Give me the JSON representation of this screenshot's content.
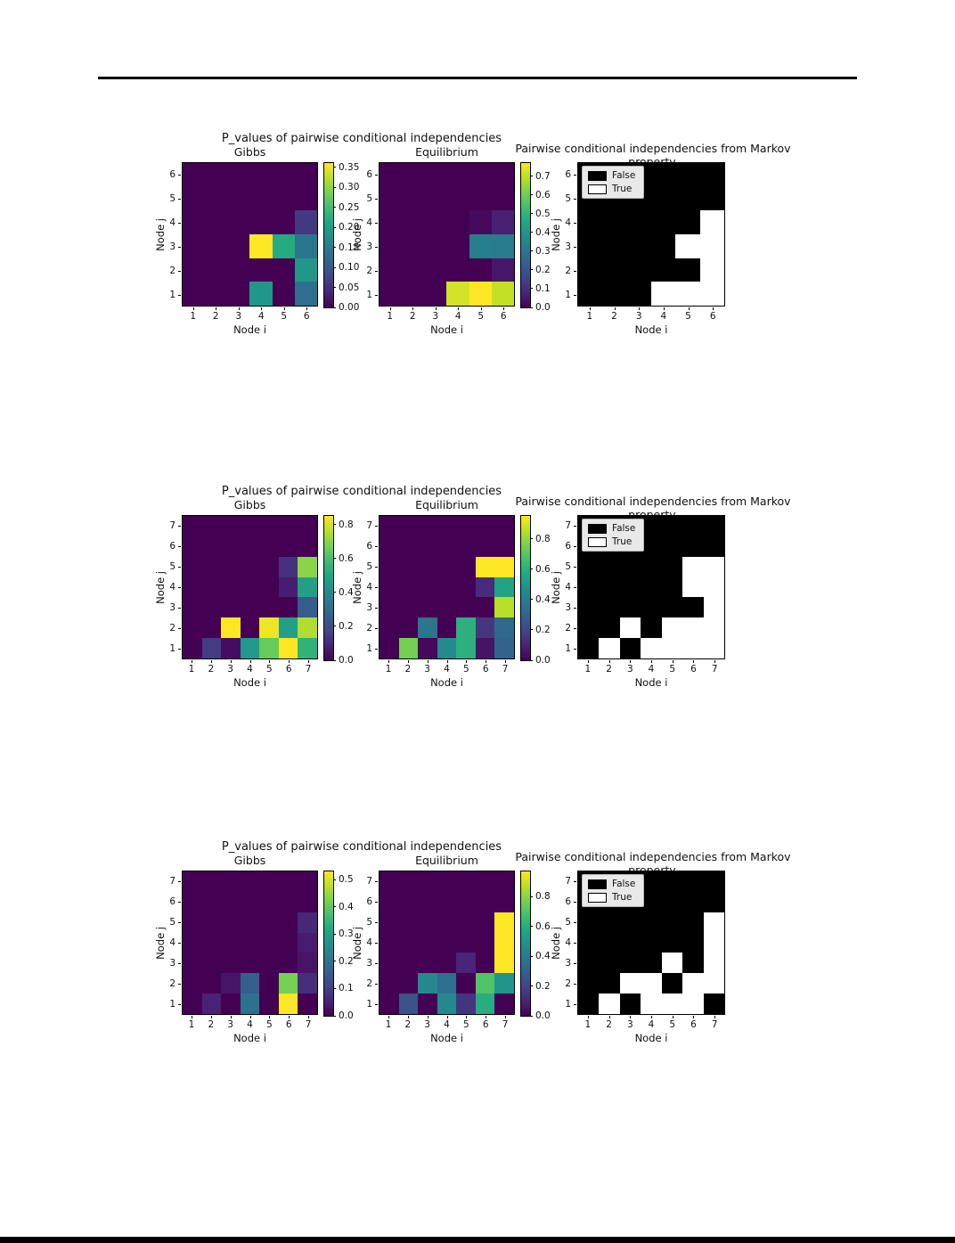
{
  "page": {
    "top_rule_color": "#000000",
    "bottom_bar_color": "#000000"
  },
  "chart_data": [
    {
      "type": "heatmap",
      "suptitle": "P_values of pairwise conditional independencies",
      "markov_title": "Pairwise conditional independencies from Markov property.",
      "xlabel": "Node i",
      "ylabel": "Node j",
      "x_ticks": [
        "1",
        "2",
        "3",
        "4",
        "5",
        "6"
      ],
      "y_ticks": [
        "1",
        "2",
        "3",
        "4",
        "5",
        "6"
      ],
      "gibbs": {
        "title": "Gibbs",
        "vmax": 0.36,
        "colorbar": {
          "vmax": 0.36,
          "ticks": [
            "0.00",
            "0.05",
            "0.10",
            "0.15",
            "0.20",
            "0.25",
            "0.30",
            "0.35"
          ]
        },
        "matrix": [
          [
            0,
            0,
            0,
            0,
            0,
            0
          ],
          [
            0,
            0,
            0,
            0,
            0,
            0
          ],
          [
            0,
            0,
            0,
            0,
            0,
            0.06
          ],
          [
            0,
            0,
            0,
            0.36,
            0.22,
            0.14
          ],
          [
            0,
            0,
            0,
            0,
            0,
            0.19
          ],
          [
            0,
            0,
            0,
            0.19,
            0,
            0.13
          ]
        ]
      },
      "equilibrium": {
        "title": "Equilibrium",
        "vmax": 0.77,
        "colorbar": {
          "vmax": 0.77,
          "ticks": [
            "0.0",
            "0.1",
            "0.2",
            "0.3",
            "0.4",
            "0.5",
            "0.6",
            "0.7"
          ]
        },
        "matrix": [
          [
            0,
            0,
            0,
            0,
            0,
            0
          ],
          [
            0,
            0,
            0,
            0,
            0,
            0
          ],
          [
            0,
            0,
            0,
            0,
            0.02,
            0.07
          ],
          [
            0,
            0,
            0,
            0,
            0.33,
            0.32
          ],
          [
            0,
            0,
            0,
            0,
            0,
            0.05
          ],
          [
            0,
            0,
            0,
            0.72,
            0.77,
            0.7
          ]
        ]
      },
      "markov": {
        "binary": true,
        "legend": [
          {
            "label": "False",
            "color": "#000000"
          },
          {
            "label": "True",
            "color": "#ffffff"
          }
        ],
        "matrix": [
          [
            0,
            0,
            0,
            0,
            0,
            0
          ],
          [
            0,
            0,
            0,
            0,
            0,
            0
          ],
          [
            0,
            0,
            0,
            0,
            0,
            1
          ],
          [
            0,
            0,
            0,
            0,
            1,
            1
          ],
          [
            0,
            0,
            0,
            0,
            0,
            1
          ],
          [
            0,
            0,
            0,
            1,
            1,
            1
          ]
        ]
      }
    },
    {
      "type": "heatmap",
      "suptitle": "P_values of pairwise conditional independencies",
      "markov_title": "Pairwise conditional independencies from Markov property.",
      "xlabel": "Node i",
      "ylabel": "Node j",
      "x_ticks": [
        "1",
        "2",
        "3",
        "4",
        "5",
        "6",
        "7"
      ],
      "y_ticks": [
        "1",
        "2",
        "3",
        "4",
        "5",
        "6",
        "7"
      ],
      "gibbs": {
        "title": "Gibbs",
        "vmax": 0.85,
        "colorbar": {
          "vmax": 0.85,
          "ticks": [
            "0.0",
            "0.2",
            "0.4",
            "0.6",
            "0.8"
          ]
        },
        "matrix": [
          [
            0,
            0,
            0,
            0,
            0,
            0,
            0
          ],
          [
            0,
            0,
            0,
            0,
            0,
            0,
            0
          ],
          [
            0,
            0,
            0,
            0,
            0,
            0.12,
            0.7
          ],
          [
            0,
            0,
            0,
            0,
            0,
            0.07,
            0.48
          ],
          [
            0,
            0,
            0,
            0,
            0,
            0,
            0.25
          ],
          [
            0,
            0,
            0.85,
            0,
            0.83,
            0.48,
            0.75
          ],
          [
            0,
            0.15,
            0.03,
            0.45,
            0.65,
            0.85,
            0.55
          ]
        ]
      },
      "equilibrium": {
        "title": "Equilibrium",
        "vmax": 0.95,
        "colorbar": {
          "vmax": 0.95,
          "ticks": [
            "0.0",
            "0.2",
            "0.4",
            "0.6",
            "0.8"
          ]
        },
        "matrix": [
          [
            0,
            0,
            0,
            0,
            0,
            0,
            0
          ],
          [
            0,
            0,
            0,
            0,
            0,
            0,
            0
          ],
          [
            0,
            0,
            0,
            0,
            0,
            0.95,
            0.95
          ],
          [
            0,
            0,
            0,
            0,
            0,
            0.12,
            0.55
          ],
          [
            0,
            0,
            0,
            0,
            0,
            0,
            0.85
          ],
          [
            0,
            0,
            0.37,
            0,
            0.6,
            0.15,
            0.32
          ],
          [
            0,
            0.75,
            0.02,
            0.45,
            0.6,
            0.05,
            0.3
          ]
        ]
      },
      "markov": {
        "binary": true,
        "legend": [
          {
            "label": "False",
            "color": "#000000"
          },
          {
            "label": "True",
            "color": "#ffffff"
          }
        ],
        "matrix": [
          [
            0,
            0,
            0,
            0,
            0,
            0,
            0
          ],
          [
            0,
            0,
            0,
            0,
            0,
            0,
            0
          ],
          [
            0,
            0,
            0,
            0,
            0,
            1,
            1
          ],
          [
            0,
            0,
            0,
            0,
            0,
            1,
            1
          ],
          [
            0,
            0,
            0,
            0,
            0,
            0,
            1
          ],
          [
            0,
            0,
            1,
            0,
            1,
            1,
            1
          ],
          [
            0,
            1,
            0,
            1,
            1,
            1,
            1
          ]
        ]
      }
    },
    {
      "type": "heatmap",
      "suptitle": "P_values of pairwise conditional independencies",
      "markov_title": "Pairwise conditional independencies from Markov property.",
      "xlabel": "Node i",
      "ylabel": "Node j",
      "x_ticks": [
        "1",
        "2",
        "3",
        "4",
        "5",
        "6",
        "7"
      ],
      "y_ticks": [
        "1",
        "2",
        "3",
        "4",
        "5",
        "6",
        "7"
      ],
      "gibbs": {
        "title": "Gibbs",
        "vmax": 0.53,
        "colorbar": {
          "vmax": 0.53,
          "ticks": [
            "0.0",
            "0.1",
            "0.2",
            "0.3",
            "0.4",
            "0.5"
          ]
        },
        "matrix": [
          [
            0,
            0,
            0,
            0,
            0,
            0,
            0
          ],
          [
            0,
            0,
            0,
            0,
            0,
            0,
            0
          ],
          [
            0,
            0,
            0,
            0,
            0,
            0,
            0.06
          ],
          [
            0,
            0,
            0,
            0,
            0,
            0,
            0.04
          ],
          [
            0,
            0,
            0,
            0,
            0,
            0,
            0.03
          ],
          [
            0,
            0,
            0.03,
            0.16,
            0,
            0.42,
            0.07
          ],
          [
            0,
            0.05,
            0,
            0.2,
            0,
            0.53,
            0
          ]
        ]
      },
      "equilibrium": {
        "title": "Equilibrium",
        "vmax": 0.97,
        "colorbar": {
          "vmax": 0.97,
          "ticks": [
            "0.0",
            "0.2",
            "0.4",
            "0.6",
            "0.8"
          ]
        },
        "matrix": [
          [
            0,
            0,
            0,
            0,
            0,
            0,
            0
          ],
          [
            0,
            0,
            0,
            0,
            0,
            0,
            0
          ],
          [
            0,
            0,
            0,
            0,
            0,
            0,
            0.97
          ],
          [
            0,
            0,
            0,
            0,
            0,
            0,
            0.97
          ],
          [
            0,
            0,
            0,
            0,
            0.1,
            0,
            0.97
          ],
          [
            0,
            0,
            0.45,
            0.35,
            0,
            0.7,
            0.5
          ],
          [
            0,
            0.25,
            0,
            0.45,
            0.15,
            0.6,
            0
          ]
        ]
      },
      "markov": {
        "binary": true,
        "legend": [
          {
            "label": "False",
            "color": "#000000"
          },
          {
            "label": "True",
            "color": "#ffffff"
          }
        ],
        "matrix": [
          [
            0,
            0,
            0,
            0,
            0,
            0,
            0
          ],
          [
            0,
            0,
            0,
            0,
            0,
            0,
            0
          ],
          [
            0,
            0,
            0,
            0,
            0,
            0,
            1
          ],
          [
            0,
            0,
            0,
            0,
            0,
            0,
            1
          ],
          [
            0,
            0,
            0,
            0,
            1,
            0,
            1
          ],
          [
            0,
            0,
            1,
            1,
            0,
            1,
            1
          ],
          [
            0,
            1,
            0,
            1,
            1,
            1,
            0
          ]
        ]
      }
    }
  ]
}
